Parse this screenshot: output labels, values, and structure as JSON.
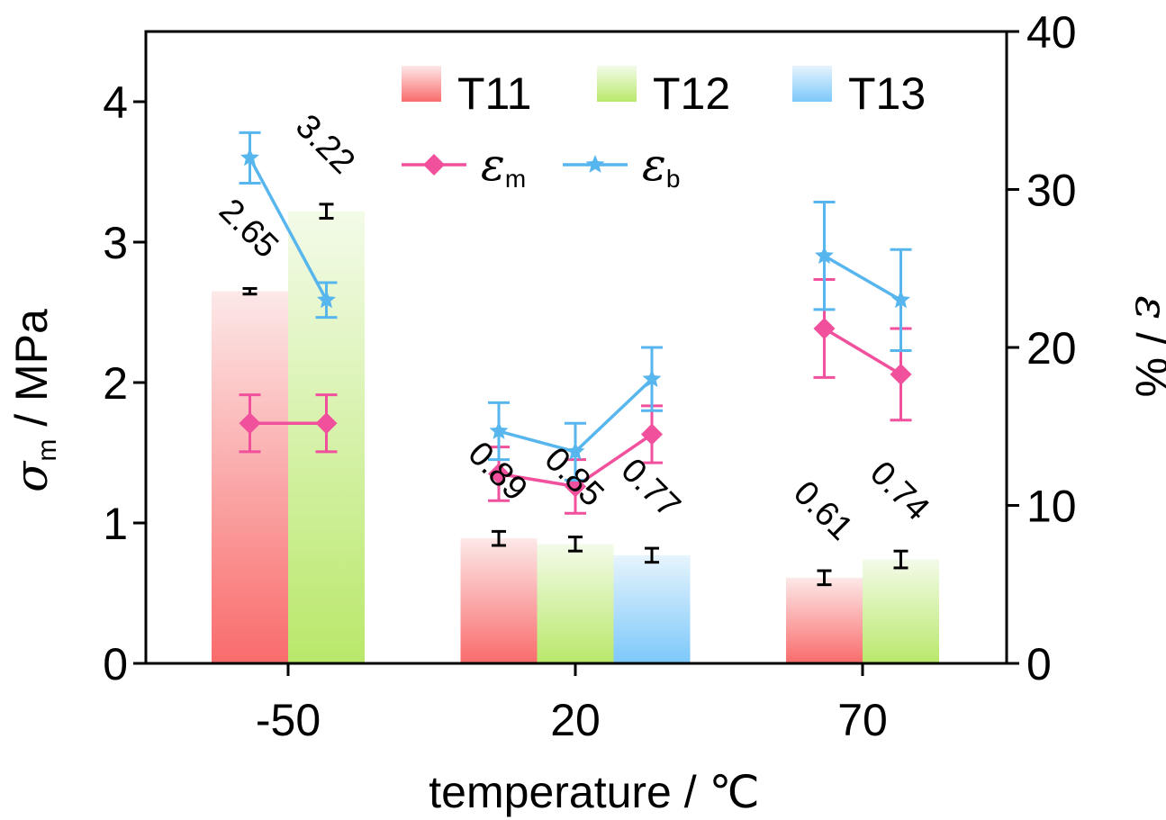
{
  "chart_data": {
    "type": "bar",
    "categories": [
      "-50",
      "20",
      "70"
    ],
    "xlabel": "temperature / ℃",
    "ylabel_left": {
      "symbol": "σ",
      "sub": "m",
      "unit": " / MPa"
    },
    "ylabel_right": {
      "symbol": "ε",
      "unit": " / %"
    },
    "ylim_left": [
      0,
      4.5
    ],
    "ylim_right": [
      0,
      40
    ],
    "yticks_left": [
      "0",
      "1",
      "2",
      "3",
      "4"
    ],
    "yticks_right": [
      "0",
      "10",
      "20",
      "30",
      "40"
    ],
    "legend_position": "top-right",
    "bar_series": [
      {
        "name": "T11",
        "color_top": "#fde8e8",
        "color_bottom": "#f96b6b",
        "values": [
          2.65,
          0.89,
          0.61
        ],
        "errors": [
          0.02,
          0.05,
          0.05
        ],
        "labels": [
          "2.65",
          "0.89",
          "0.61"
        ]
      },
      {
        "name": "T12",
        "color_top": "#f3fbe9",
        "color_bottom": "#b9e86a",
        "values": [
          3.22,
          0.85,
          0.74
        ],
        "errors": [
          0.05,
          0.05,
          0.06
        ],
        "labels": [
          "3.22",
          "0.85",
          "0.74"
        ]
      },
      {
        "name": "T13",
        "color_top": "#e6f4fd",
        "color_bottom": "#7cc8fa",
        "values": [
          null,
          0.77,
          null
        ],
        "errors": [
          null,
          0.05,
          null
        ],
        "labels": [
          "",
          "0.77",
          ""
        ]
      }
    ],
    "line_series": [
      {
        "name": "ε",
        "sub": "m",
        "color": "#f0509c",
        "marker": "diamond",
        "segments": [
          [
            {
              "group": 0,
              "slot": 0,
              "y": 15.2,
              "err": 1.8
            },
            {
              "group": 0,
              "slot": 1,
              "y": 15.2,
              "err": 1.8
            }
          ],
          [
            {
              "group": 1,
              "slot": 0,
              "y": 12.0,
              "err": 1.7
            },
            {
              "group": 1,
              "slot": 1,
              "y": 11.2,
              "err": 1.7
            },
            {
              "group": 1,
              "slot": 2,
              "y": 14.5,
              "err": 1.8
            }
          ],
          [
            {
              "group": 2,
              "slot": 0,
              "y": 21.2,
              "err": 3.1
            },
            {
              "group": 2,
              "slot": 1,
              "y": 18.3,
              "err": 2.9
            }
          ]
        ]
      },
      {
        "name": "ε",
        "sub": "b",
        "color": "#58b6ee",
        "marker": "star",
        "segments": [
          [
            {
              "group": 0,
              "slot": 0,
              "y": 32.0,
              "err": 1.6
            },
            {
              "group": 0,
              "slot": 1,
              "y": 23.0,
              "err": 1.1
            }
          ],
          [
            {
              "group": 1,
              "slot": 0,
              "y": 14.7,
              "err": 1.8
            },
            {
              "group": 1,
              "slot": 1,
              "y": 13.4,
              "err": 1.8
            },
            {
              "group": 1,
              "slot": 2,
              "y": 18.0,
              "err": 2.0
            }
          ],
          [
            {
              "group": 2,
              "slot": 0,
              "y": 25.8,
              "err": 3.4
            },
            {
              "group": 2,
              "slot": 1,
              "y": 23.0,
              "err": 3.2
            }
          ]
        ]
      }
    ]
  }
}
